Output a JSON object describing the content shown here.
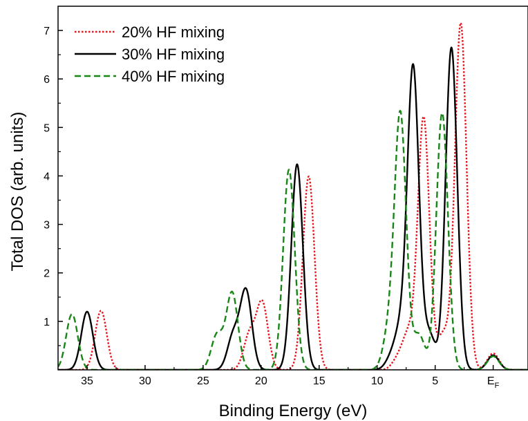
{
  "chart_data": {
    "type": "line",
    "xlabel": "Binding Energy (eV)",
    "ylabel": "Total DOS (arb. units)",
    "xlim": [
      37.5,
      -3.0
    ],
    "ylim": [
      0,
      7.5
    ],
    "x_reversed": true,
    "grid": false,
    "legend_position": "top-left",
    "x_ticks": [
      {
        "value": 35,
        "label": "35"
      },
      {
        "value": 30,
        "label": "30"
      },
      {
        "value": 25,
        "label": "25"
      },
      {
        "value": 20,
        "label": "20"
      },
      {
        "value": 15,
        "label": "15"
      },
      {
        "value": 10,
        "label": "10"
      },
      {
        "value": 5,
        "label": "5"
      },
      {
        "value": 0,
        "label": "E",
        "subscript": "F"
      }
    ],
    "y_ticks": [
      1,
      2,
      3,
      4,
      5,
      6,
      7
    ],
    "series": [
      {
        "name": "20% HF mixing",
        "color": "#e8141c",
        "style": "dotted",
        "points": [
          [
            33.8,
            1.22
          ],
          [
            21.0,
            0.72
          ],
          [
            19.9,
            1.37
          ],
          [
            15.9,
            3.99
          ],
          [
            8.2,
            0.22
          ],
          [
            7.3,
            0.7
          ],
          [
            6.0,
            5.2
          ],
          [
            4.3,
            0.72
          ],
          [
            2.8,
            7.15
          ],
          [
            0.0,
            0.34
          ]
        ]
      },
      {
        "name": "30% HF mixing",
        "color": "#000000",
        "style": "solid",
        "points": [
          [
            35.0,
            1.2
          ],
          [
            22.4,
            0.7
          ],
          [
            21.3,
            1.62
          ],
          [
            16.9,
            4.24
          ],
          [
            8.8,
            0.22
          ],
          [
            8.0,
            0.72
          ],
          [
            6.9,
            6.23
          ],
          [
            5.5,
            0.72
          ],
          [
            3.6,
            6.65
          ],
          [
            0.0,
            0.3
          ]
        ]
      },
      {
        "name": "40% HF mixing",
        "color": "#178617",
        "style": "dashed",
        "points": [
          [
            36.3,
            1.15
          ],
          [
            23.8,
            0.72
          ],
          [
            22.5,
            1.59
          ],
          [
            17.6,
            4.13
          ],
          [
            9.0,
            0.72
          ],
          [
            8.0,
            5.24
          ],
          [
            6.4,
            0.72
          ],
          [
            4.4,
            5.3
          ],
          [
            0.0,
            0.28
          ]
        ]
      }
    ]
  }
}
